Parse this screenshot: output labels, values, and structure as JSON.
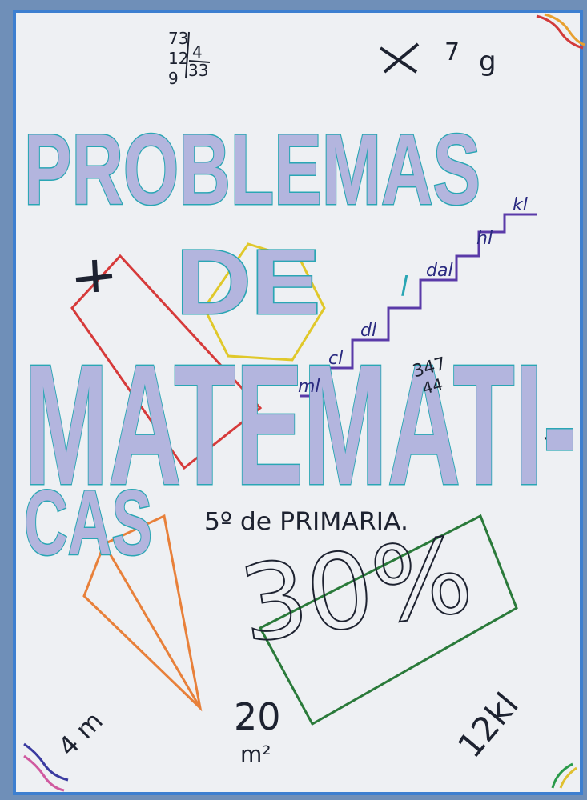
{
  "title": [
    "PROBLEMAS",
    "DE",
    "MATEMATI-",
    "CAS"
  ],
  "subtitle": "5º de PRIMARIA.",
  "percent": "30%",
  "units": [
    "ml",
    "cl",
    "dl",
    "l",
    "dal",
    "hl",
    "kl"
  ],
  "top": {
    "number": "7",
    "letter": "g"
  },
  "division": [
    "73",
    "4",
    "12",
    "33",
    "9"
  ],
  "multiplication": [
    "347",
    "44"
  ],
  "measures": {
    "length": "4 m",
    "area_value": "20",
    "area_unit": "m²",
    "volume": "12kl"
  }
}
